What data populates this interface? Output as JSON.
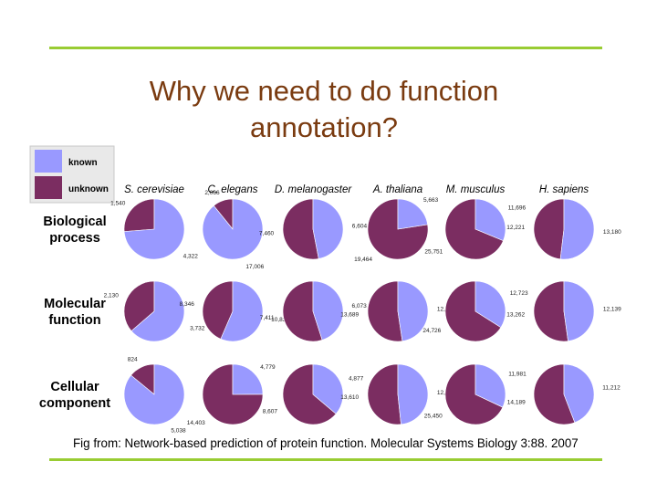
{
  "slide": {
    "title_line1": "Why we need to do function",
    "title_line2": "annotation?",
    "caption": "Fig from: Network-based prediction of protein function. Molecular Systems Biology 3:88. 2007"
  },
  "chart_data": {
    "type": "pie",
    "legend": [
      {
        "label": "known",
        "color": "#9999ff"
      },
      {
        "label": "unknown",
        "color": "#7b2d61"
      }
    ],
    "organisms": [
      "S. cerevisiae",
      "C. elegans",
      "D. melanogaster",
      "A. thaliana",
      "M. musculus",
      "H. sapiens"
    ],
    "categories": [
      {
        "label_lines": [
          "Biological",
          "process"
        ],
        "pies": [
          {
            "known": 4322,
            "unknown": 1540,
            "known_label": "4,322",
            "unknown_label": "1,540"
          },
          {
            "known": 17006,
            "unknown": 2066,
            "known_label": "17,006",
            "unknown_label": "2,066"
          },
          {
            "known": 6604,
            "unknown": 7460,
            "known_label": "6,604",
            "unknown_label": "7,460"
          },
          {
            "known": 5663,
            "unknown": 19464,
            "known_label": "5,663",
            "unknown_label": "19,464"
          },
          {
            "known": 11696,
            "unknown": 25751,
            "known_label": "11,696",
            "unknown_label": "25,751"
          },
          {
            "known": 13180,
            "unknown": 12221,
            "known_label": "13,180",
            "unknown_label": "12,221"
          }
        ]
      },
      {
        "label_lines": [
          "Molecular",
          "function"
        ],
        "pies": [
          {
            "known": 3732,
            "unknown": 2130,
            "known_label": "3,732",
            "unknown_label": "2,130"
          },
          {
            "known": 10836,
            "unknown": 8346,
            "known_label": "10,836",
            "unknown_label": "8,346"
          },
          {
            "known": 6073,
            "unknown": 7411,
            "known_label": "6,073",
            "unknown_label": "7,411"
          },
          {
            "known": 12438,
            "unknown": 13689,
            "known_label": "12,438",
            "unknown_label": "13,689"
          },
          {
            "known": 12723,
            "unknown": 24726,
            "known_label": "12,723",
            "unknown_label": "24,726"
          },
          {
            "known": 12139,
            "unknown": 13262,
            "known_label": "12,139",
            "unknown_label": "13,262"
          }
        ]
      },
      {
        "label_lines": [
          "Cellular",
          "component"
        ],
        "pies": [
          {
            "known": 5038,
            "unknown": 824,
            "known_label": "5,038",
            "unknown_label": "824"
          },
          {
            "known": 4779,
            "unknown": 14403,
            "known_label": "4,779",
            "unknown_label": "14,403"
          },
          {
            "known": 4877,
            "unknown": 8607,
            "known_label": "4,877",
            "unknown_label": "8,607"
          },
          {
            "known": 12717,
            "unknown": 13610,
            "known_label": "12,717",
            "unknown_label": "13,610"
          },
          {
            "known": 11981,
            "unknown": 25450,
            "known_label": "11,981",
            "unknown_label": "25,450"
          },
          {
            "known": 11212,
            "unknown": 14189,
            "known_label": "11,212",
            "unknown_label": "14,189"
          }
        ]
      }
    ]
  }
}
